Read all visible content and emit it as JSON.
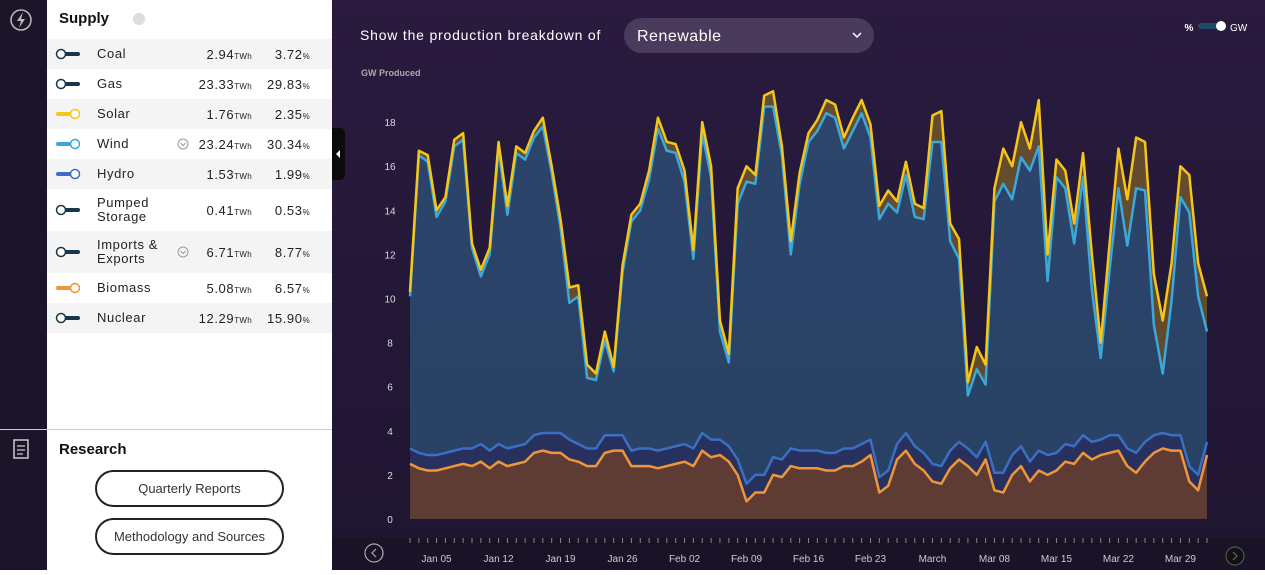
{
  "sidebar": {
    "title": "Supply",
    "rows": [
      {
        "name": "Coal",
        "energy": "2.94",
        "energy_unit": "TWh",
        "share": "3.72",
        "share_unit": "%",
        "enabled": false,
        "color": "#17384a",
        "expandable": false
      },
      {
        "name": "Gas",
        "energy": "23.33",
        "energy_unit": "TWh",
        "share": "29.83",
        "share_unit": "%",
        "enabled": false,
        "color": "#17384a",
        "expandable": false
      },
      {
        "name": "Solar",
        "energy": "1.76",
        "energy_unit": "TWh",
        "share": "2.35",
        "share_unit": "%",
        "enabled": true,
        "color": "#f5c518",
        "expandable": false
      },
      {
        "name": "Wind",
        "energy": "23.24",
        "energy_unit": "TWh",
        "share": "30.34",
        "share_unit": "%",
        "enabled": true,
        "color": "#3aa8dc",
        "expandable": true
      },
      {
        "name": "Hydro",
        "energy": "1.53",
        "energy_unit": "TWh",
        "share": "1.99",
        "share_unit": "%",
        "enabled": true,
        "color": "#3a6fc4",
        "expandable": false
      },
      {
        "name": "Pumped Storage",
        "energy": "0.41",
        "energy_unit": "TWh",
        "share": "0.53",
        "share_unit": "%",
        "enabled": false,
        "color": "#17384a",
        "expandable": false
      },
      {
        "name": "Imports & Exports",
        "energy": "6.71",
        "energy_unit": "TWh",
        "share": "8.77",
        "share_unit": "%",
        "enabled": false,
        "color": "#17384a",
        "expandable": true
      },
      {
        "name": "Biomass",
        "energy": "5.08",
        "energy_unit": "TWh",
        "share": "6.57",
        "share_unit": "%",
        "enabled": true,
        "color": "#f0963a",
        "expandable": false
      },
      {
        "name": "Nuclear",
        "energy": "12.29",
        "energy_unit": "TWh",
        "share": "15.90",
        "share_unit": "%",
        "enabled": false,
        "color": "#17384a",
        "expandable": false
      }
    ]
  },
  "research": {
    "title": "Research",
    "buttons": [
      "Quarterly Reports",
      "Methodology and Sources"
    ]
  },
  "toolbar": {
    "prompt": "Show the production breakdown of",
    "selection": "Renewable",
    "unit_options": [
      "%",
      "GW"
    ]
  },
  "chart_data": {
    "type": "stacked-area",
    "y_label": "GW Produced",
    "categories": [
      null,
      null,
      null,
      "Jan 05",
      null,
      null,
      null,
      null,
      null,
      null,
      "Jan 12",
      null,
      null,
      null,
      null,
      null,
      null,
      "Jan 19",
      null,
      null,
      null,
      null,
      null,
      null,
      "Jan 26",
      null,
      null,
      null,
      null,
      null,
      null,
      "Feb 02",
      null,
      null,
      null,
      null,
      null,
      null,
      "Feb 09",
      null,
      null,
      null,
      null,
      null,
      null,
      "Feb 16",
      null,
      null,
      null,
      null,
      null,
      null,
      "Feb 23",
      null,
      null,
      null,
      null,
      null,
      null,
      "March",
      null,
      null,
      null,
      null,
      null,
      null,
      "Mar 08",
      null,
      null,
      null,
      null,
      null,
      null,
      "Mar 15",
      null,
      null,
      null,
      null,
      null,
      null,
      "Mar 22",
      null,
      null,
      null,
      null,
      null,
      null,
      "Mar 29",
      null,
      null,
      null
    ],
    "series": [
      {
        "color": "#f0963a",
        "values": [
          2.5,
          2.3,
          2.2,
          2.2,
          2.3,
          2.4,
          2.5,
          2.4,
          2.6,
          2.3,
          2.6,
          2.4,
          2.5,
          2.6,
          3.0,
          3.1,
          3.0,
          3.0,
          2.7,
          2.6,
          2.4,
          2.4,
          3.0,
          3.1,
          3.1,
          2.4,
          2.4,
          2.4,
          2.3,
          2.4,
          2.5,
          2.6,
          2.4,
          3.1,
          2.8,
          2.9,
          2.6,
          2.0,
          0.8,
          1.2,
          1.2,
          2.0,
          1.9,
          2.4,
          2.3,
          2.3,
          2.3,
          2.2,
          2.2,
          2.4,
          2.4,
          2.6,
          2.9,
          1.2,
          1.5,
          2.7,
          3.1,
          2.5,
          2.2,
          1.7,
          1.6,
          2.3,
          2.7,
          2.4,
          2.0,
          2.7,
          1.3,
          1.2,
          2.0,
          2.4,
          1.7,
          2.2,
          2.0,
          2.2,
          2.6,
          2.5,
          3.0,
          2.7,
          2.9,
          3.0,
          3.1,
          2.4,
          2.1,
          2.6,
          3.0,
          3.2,
          3.1,
          3.1,
          1.7,
          1.3,
          2.9
        ]
      },
      {
        "color": "#3a6fc4",
        "values": [
          0.7,
          0.7,
          0.7,
          0.7,
          0.7,
          0.7,
          0.7,
          0.8,
          0.8,
          0.8,
          0.8,
          0.8,
          0.8,
          0.8,
          0.8,
          0.8,
          0.9,
          0.9,
          0.9,
          0.8,
          0.8,
          0.8,
          0.8,
          0.7,
          0.7,
          0.7,
          0.8,
          0.8,
          0.8,
          0.8,
          0.8,
          0.8,
          0.8,
          0.8,
          0.8,
          0.7,
          0.7,
          0.7,
          0.8,
          0.8,
          0.8,
          0.8,
          0.8,
          0.8,
          0.8,
          0.8,
          0.8,
          0.8,
          0.8,
          0.8,
          0.8,
          0.8,
          0.7,
          0.7,
          0.7,
          0.7,
          0.8,
          0.8,
          0.8,
          0.8,
          0.8,
          0.8,
          0.8,
          0.8,
          0.8,
          0.8,
          0.8,
          0.9,
          0.9,
          0.9,
          0.9,
          0.9,
          0.9,
          0.8,
          0.8,
          0.8,
          0.8,
          0.8,
          0.7,
          0.8,
          0.7,
          0.8,
          0.9,
          0.9,
          0.8,
          0.7,
          0.7,
          0.7,
          0.7,
          0.7,
          0.6
        ]
      },
      {
        "color": "#3aa8dc",
        "values": [
          6.9,
          13.5,
          13.3,
          10.8,
          11.4,
          13.8,
          14.0,
          9.1,
          7.6,
          8.9,
          13.4,
          10.6,
          13.3,
          12.9,
          13.5,
          13.9,
          11.8,
          9.3,
          6.2,
          6.7,
          3.2,
          3.1,
          4.3,
          2.9,
          7.4,
          10.4,
          10.8,
          12.2,
          14.6,
          13.5,
          13.3,
          11.9,
          8.6,
          13.6,
          11.9,
          4.9,
          3.8,
          11.6,
          13.7,
          13.2,
          16.7,
          15.9,
          13.8,
          8.8,
          12.1,
          14.0,
          14.5,
          15.4,
          15.2,
          13.6,
          14.4,
          15.0,
          13.7,
          11.7,
          12.1,
          10.5,
          11.7,
          10.4,
          10.6,
          14.6,
          14.7,
          9.5,
          8.3,
          2.4,
          4.0,
          2.6,
          12.3,
          13.1,
          11.6,
          13.1,
          13.2,
          13.8,
          7.9,
          12.5,
          11.6,
          9.2,
          11.7,
          6.9,
          3.7,
          7.5,
          11.2,
          9.2,
          12.0,
          11.4,
          5.0,
          2.7,
          6.1,
          10.8,
          11.5,
          8.1,
          5.0
        ]
      },
      {
        "color": "#f5c518",
        "values": [
          0.2,
          0.2,
          0.3,
          0.3,
          0.2,
          0.3,
          0.3,
          0.2,
          0.3,
          0.3,
          0.3,
          0.4,
          0.3,
          0.3,
          0.3,
          0.4,
          0.3,
          0.4,
          0.7,
          0.5,
          0.6,
          0.3,
          0.4,
          0.2,
          0.3,
          0.3,
          0.3,
          0.4,
          0.5,
          0.4,
          0.4,
          0.5,
          0.4,
          0.5,
          0.5,
          0.5,
          0.4,
          0.7,
          0.7,
          0.4,
          0.5,
          0.7,
          0.4,
          0.6,
          0.5,
          0.4,
          0.5,
          0.6,
          0.6,
          0.5,
          0.6,
          0.6,
          0.6,
          0.6,
          0.6,
          0.5,
          0.6,
          0.6,
          0.5,
          1.2,
          1.4,
          0.8,
          0.9,
          0.6,
          1.0,
          0.9,
          0.6,
          1.6,
          1.5,
          1.6,
          1.0,
          2.1,
          1.2,
          0.8,
          0.8,
          0.9,
          1.1,
          1.6,
          0.7,
          1.2,
          1.8,
          2.1,
          2.3,
          2.2,
          2.3,
          2.4,
          1.7,
          1.4,
          1.7,
          1.5,
          1.6
        ]
      }
    ],
    "ylim": [
      0,
      20
    ],
    "yticks": [
      0,
      2,
      4,
      6,
      8,
      10,
      12,
      14,
      16,
      18
    ],
    "grid": false
  }
}
